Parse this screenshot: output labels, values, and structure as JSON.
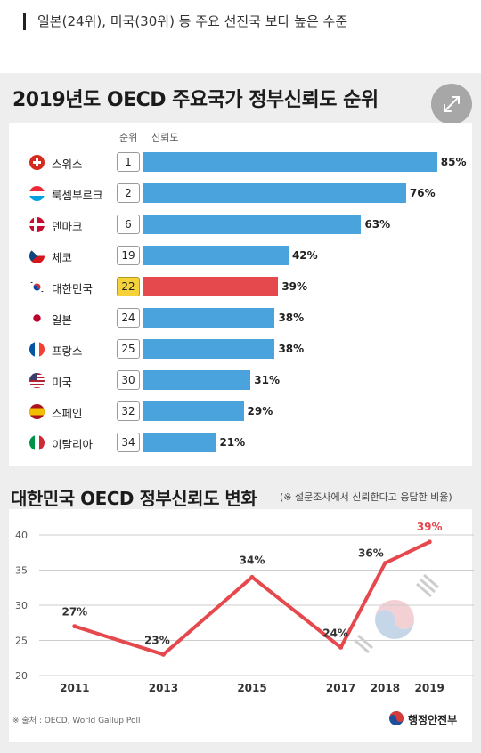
{
  "caption": "일본(24위), 미국(30위) 등 주요 선진국 보다 높은 수준",
  "chart_data": [
    {
      "type": "bar",
      "title": "2019년도 OECD 주요국가 정부신뢰도 순위",
      "column_headers": [
        "순위",
        "신뢰도"
      ],
      "categories": [
        "스위스",
        "룩셈부르크",
        "덴마크",
        "체코",
        "대한민국",
        "일본",
        "프랑스",
        "미국",
        "스페인",
        "이탈리아"
      ],
      "ranks": [
        "1",
        "2",
        "6",
        "19",
        "22",
        "24",
        "25",
        "30",
        "32",
        "34"
      ],
      "values": [
        85,
        76,
        63,
        42,
        39,
        38,
        38,
        31,
        29,
        21
      ],
      "value_labels": [
        "85%",
        "76%",
        "63%",
        "42%",
        "39%",
        "38%",
        "38%",
        "31%",
        "29%",
        "21%"
      ],
      "highlight": "대한민국",
      "colors": {
        "bar": "#4aa3dd",
        "highlight_bar": "#e5484d",
        "highlight_rank": "#f6d23a"
      },
      "flags": [
        "switzerland-flag-icon",
        "luxembourg-flag-icon",
        "denmark-flag-icon",
        "czech-flag-icon",
        "korea-flag-icon",
        "japan-flag-icon",
        "france-flag-icon",
        "usa-flag-icon",
        "spain-flag-icon",
        "italy-flag-icon"
      ]
    },
    {
      "type": "line",
      "title": "대한민국 OECD 정부신뢰도 변화",
      "subtitle": "(※ 설문조사에서 신뢰한다고 응답한 비율)",
      "x": [
        "2011",
        "2013",
        "2015",
        "2017",
        "2018",
        "2019"
      ],
      "x_numeric": [
        2011,
        2013,
        2015,
        2017,
        2018,
        2019
      ],
      "values": [
        27,
        23,
        34,
        24,
        36,
        39
      ],
      "value_labels": [
        "27%",
        "23%",
        "34%",
        "24%",
        "36%",
        "39%"
      ],
      "yticks": [
        "20",
        "25",
        "30",
        "35",
        "40"
      ],
      "ylim": [
        20,
        40
      ],
      "xlim": [
        2010.2,
        2020.0
      ],
      "grid": true,
      "colors": {
        "line": "#e5484d",
        "last_label": "#e5484d",
        "grid": "#cccccc"
      }
    }
  ],
  "source": "※ 출처 : OECD, World Gallup Poll",
  "ministry": "행정안전부"
}
